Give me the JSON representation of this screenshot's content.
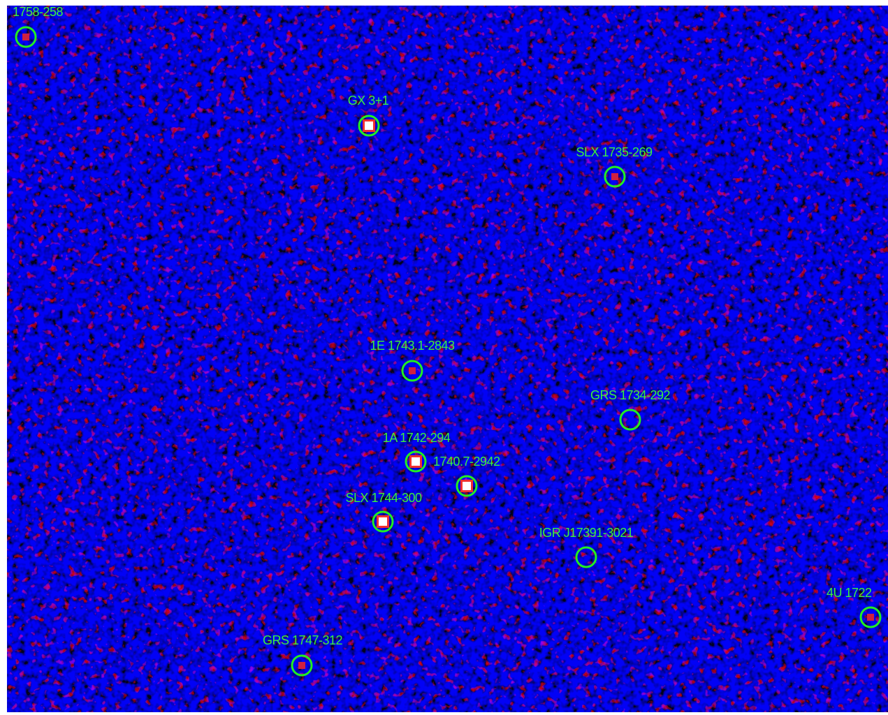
{
  "sources": [
    {
      "label": "1758-258"
    },
    {
      "label": "GX 3+1"
    },
    {
      "label": "SLX 1735-269"
    },
    {
      "label": "1E 1743.1-2843"
    },
    {
      "label": "GRS 1734-292"
    },
    {
      "label": "1A 1742-294"
    },
    {
      "label": "1740.7-2942"
    },
    {
      "label": "SLX 1744-300"
    },
    {
      "label": "IGR J17391-3021"
    },
    {
      "label": "4U 1722"
    },
    {
      "label": "GRS 1747-312"
    }
  ]
}
